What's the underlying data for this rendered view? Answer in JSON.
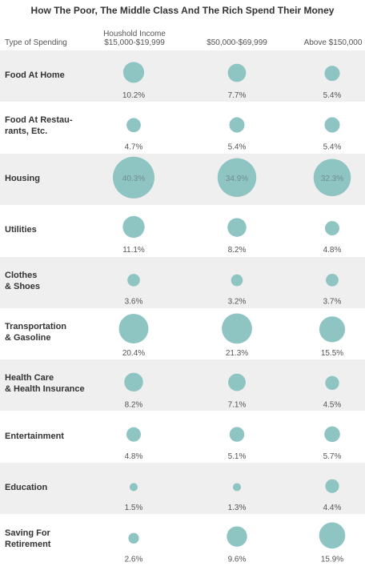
{
  "chart_data": {
    "type": "bubble-table",
    "title": "How The Poor, The Middle Class And The Rich Spend Their Money",
    "row_header": "Type of Spending",
    "columns": [
      {
        "label_line1": "Houshold Income",
        "label_line2": "$15,000-$19,999"
      },
      {
        "label_line1": "",
        "label_line2": "$50,000-$69,999"
      },
      {
        "label_line1": "",
        "label_line2": "Above $150,000"
      }
    ],
    "rows": [
      {
        "label": "Food At Home",
        "values": [
          10.2,
          7.7,
          5.4
        ],
        "labels": [
          "10.2%",
          "7.7%",
          "5.4%"
        ]
      },
      {
        "label": "Food At Restau-\nrants, Etc.",
        "values": [
          4.7,
          5.4,
          5.4
        ],
        "labels": [
          "4.7%",
          "5.4%",
          "5.4%"
        ]
      },
      {
        "label": "Housing",
        "values": [
          40.3,
          34.9,
          32.3
        ],
        "labels": [
          "40.3%",
          "34.9%",
          "32.3%"
        ]
      },
      {
        "label": "Utilities",
        "values": [
          11.1,
          8.2,
          4.8
        ],
        "labels": [
          "11.1%",
          "8.2%",
          "4.8%"
        ]
      },
      {
        "label": "Clothes\n& Shoes",
        "values": [
          3.6,
          3.2,
          3.7
        ],
        "labels": [
          "3.6%",
          "3.2%",
          "3.7%"
        ]
      },
      {
        "label": "Transportation\n& Gasoline",
        "values": [
          20.4,
          21.3,
          15.5
        ],
        "labels": [
          "20.4%",
          "21.3%",
          "15.5%"
        ]
      },
      {
        "label": "Health Care\n& Health Insurance",
        "values": [
          8.2,
          7.1,
          4.5
        ],
        "labels": [
          "8.2%",
          "7.1%",
          "4.5%"
        ]
      },
      {
        "label": "Entertainment",
        "values": [
          4.8,
          5.1,
          5.7
        ],
        "labels": [
          "4.8%",
          "5.1%",
          "5.7%"
        ]
      },
      {
        "label": "Education",
        "values": [
          1.5,
          1.3,
          4.4
        ],
        "labels": [
          "1.5%",
          "1.3%",
          "4.4%"
        ]
      },
      {
        "label": "Saving For\nRetirement",
        "values": [
          2.6,
          9.6,
          15.9
        ],
        "labels": [
          "2.6%",
          "9.6%",
          "15.9%"
        ]
      }
    ],
    "colors": {
      "bubble": "#8ec4c2",
      "shaded_row": "#efefef"
    }
  }
}
